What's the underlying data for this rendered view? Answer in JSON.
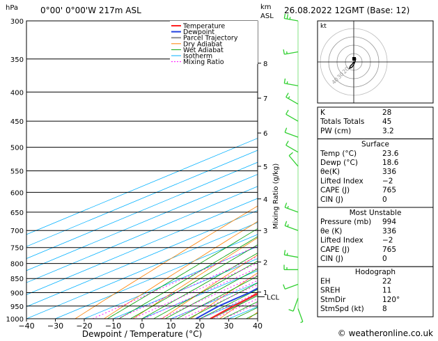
{
  "header": {
    "hpa_label": "hPa",
    "location": "0°00' 0°00'W 217m ASL",
    "km_label": "km",
    "asl_label": "ASL",
    "datetime": "26.08.2022 12GMT (Base: 12)"
  },
  "colors": {
    "temperature": "#ff2020",
    "dewpoint": "#2040e0",
    "parcel": "#909090",
    "dry_adiabat": "#ff8000",
    "wet_adiabat": "#00a000",
    "isotherm": "#00b0ff",
    "mixing_ratio": "#ff00ff",
    "wind": "#30d030"
  },
  "chart_data": {
    "type": "line",
    "title": "",
    "xlabel": "Dewpoint / Temperature (°C)",
    "ylabel": "",
    "right_axis_label": "Mixing Ratio (g/kg)",
    "xlim": [
      -40,
      40
    ],
    "x_ticks": [
      -40,
      -30,
      -20,
      -10,
      0,
      10,
      20,
      30,
      40
    ],
    "x_tick_labels": [
      "−40",
      "−30",
      "−20",
      "−10",
      "0",
      "10",
      "20",
      "30",
      "40"
    ],
    "pressure_levels": [
      300,
      350,
      400,
      450,
      500,
      550,
      600,
      650,
      700,
      750,
      800,
      850,
      900,
      950,
      1000
    ],
    "pressure_labels": [
      "300",
      "350",
      "400",
      "450",
      "500",
      "550",
      "600",
      "650",
      "700",
      "750",
      "800",
      "850",
      "900",
      "950",
      "1000"
    ],
    "km_axis": [
      {
        "label": "8",
        "p": 356
      },
      {
        "label": "7",
        "p": 410
      },
      {
        "label": "6",
        "p": 472
      },
      {
        "label": "5",
        "p": 540
      },
      {
        "label": "4",
        "p": 616
      },
      {
        "label": "3",
        "p": 700
      },
      {
        "label": "2",
        "p": 795
      },
      {
        "label": "1",
        "p": 898
      }
    ],
    "lcl": {
      "label": "LCL",
      "p": 915
    },
    "mixing_ratio_lines": [
      1,
      2,
      3,
      4,
      6,
      8,
      10,
      15,
      20,
      25
    ],
    "mixing_ratio_labels": [
      "1",
      "2",
      "3",
      "4",
      "6",
      "8",
      "10",
      "15",
      "20",
      "25"
    ],
    "legend": [
      "Temperature",
      "Dewpoint",
      "Parcel Trajectory",
      "Dry Adiabat",
      "Wet Adiabat",
      "Isotherm",
      "Mixing Ratio"
    ],
    "legend_position": "top-center",
    "series": [
      {
        "name": "Temperature",
        "points": [
          [
            23.6,
            1000
          ],
          [
            21,
            950
          ],
          [
            19,
            900
          ],
          [
            16,
            850
          ],
          [
            13.5,
            800
          ],
          [
            11,
            750
          ],
          [
            8,
            700
          ],
          [
            5,
            650
          ],
          [
            2.5,
            600
          ],
          [
            -0.5,
            550
          ],
          [
            -4,
            500
          ],
          [
            -7,
            450
          ],
          [
            -12,
            400
          ],
          [
            -17,
            350
          ],
          [
            -22,
            300
          ]
        ]
      },
      {
        "name": "Dewpoint",
        "points": [
          [
            18.6,
            1000
          ],
          [
            16,
            950
          ],
          [
            15.5,
            900
          ],
          [
            13,
            850
          ],
          [
            9,
            800
          ],
          [
            6,
            750
          ],
          [
            3,
            700
          ],
          [
            3,
            670
          ],
          [
            6,
            640
          ],
          [
            3,
            615
          ],
          [
            6,
            595
          ],
          [
            1,
            570
          ],
          [
            4,
            545
          ],
          [
            0,
            510
          ],
          [
            4,
            485
          ],
          [
            0,
            495
          ],
          [
            -8,
            480
          ],
          [
            -9,
            430
          ],
          [
            -8,
            410
          ],
          [
            -4,
            400
          ],
          [
            -10,
            395
          ],
          [
            -18,
            370
          ],
          [
            -10,
            340
          ],
          [
            -18,
            320
          ],
          [
            -20,
            300
          ]
        ]
      },
      {
        "name": "Parcel Trajectory",
        "points": [
          [
            23.6,
            1000
          ],
          [
            21.5,
            950
          ],
          [
            20,
            915
          ],
          [
            18,
            850
          ],
          [
            15.5,
            800
          ],
          [
            13,
            750
          ],
          [
            11,
            700
          ],
          [
            8.5,
            650
          ],
          [
            6,
            600
          ],
          [
            3,
            550
          ],
          [
            0,
            500
          ],
          [
            -3.5,
            450
          ],
          [
            -7.5,
            400
          ],
          [
            -12.5,
            350
          ],
          [
            -18,
            300
          ]
        ]
      }
    ],
    "winds": [
      {
        "p": 300,
        "dir": 280,
        "spd": 25
      },
      {
        "p": 340,
        "dir": 260,
        "spd": 15
      },
      {
        "p": 390,
        "dir": 280,
        "spd": 15
      },
      {
        "p": 420,
        "dir": 300,
        "spd": 15
      },
      {
        "p": 450,
        "dir": 300,
        "spd": 10
      },
      {
        "p": 480,
        "dir": 290,
        "spd": 10
      },
      {
        "p": 510,
        "dir": 300,
        "spd": 10
      },
      {
        "p": 540,
        "dir": 320,
        "spd": 10
      },
      {
        "p": 650,
        "dir": 290,
        "spd": 15
      },
      {
        "p": 700,
        "dir": 290,
        "spd": 15
      },
      {
        "p": 780,
        "dir": 280,
        "spd": 15
      },
      {
        "p": 820,
        "dir": 270,
        "spd": 15
      },
      {
        "p": 870,
        "dir": 250,
        "spd": 10
      },
      {
        "p": 920,
        "dir": 200,
        "spd": 10
      },
      {
        "p": 960,
        "dir": 160,
        "spd": 5
      }
    ]
  },
  "hodograph": {
    "unit_label": "kt",
    "ring_labels": [
      "40",
      "30",
      "20"
    ]
  },
  "indices": [
    {
      "label": "K",
      "value": "28"
    },
    {
      "label": "Totals Totals",
      "value": "45"
    },
    {
      "label": "PW (cm)",
      "value": "3.2"
    }
  ],
  "surface": {
    "title": "Surface",
    "rows": [
      {
        "label": "Temp (°C)",
        "value": "23.6"
      },
      {
        "label": "Dewp (°C)",
        "value": "18.6"
      },
      {
        "label": "θe(K)",
        "value": "336"
      },
      {
        "label": "Lifted Index",
        "value": "−2"
      },
      {
        "label": "CAPE (J)",
        "value": "765"
      },
      {
        "label": "CIN (J)",
        "value": "0"
      }
    ]
  },
  "most_unstable": {
    "title": "Most Unstable",
    "rows": [
      {
        "label": "Pressure (mb)",
        "value": "994"
      },
      {
        "label": "θe (K)",
        "value": "336"
      },
      {
        "label": "Lifted Index",
        "value": "−2"
      },
      {
        "label": "CAPE (J)",
        "value": "765"
      },
      {
        "label": "CIN (J)",
        "value": "0"
      }
    ]
  },
  "hodograph_table": {
    "title": "Hodograph",
    "rows": [
      {
        "label": "EH",
        "value": "22"
      },
      {
        "label": "SREH",
        "value": "11"
      },
      {
        "label": "StmDir",
        "value": "120°"
      },
      {
        "label": "StmSpd (kt)",
        "value": "8"
      }
    ]
  },
  "footer": {
    "copyright": "© weatheronline.co.uk"
  }
}
